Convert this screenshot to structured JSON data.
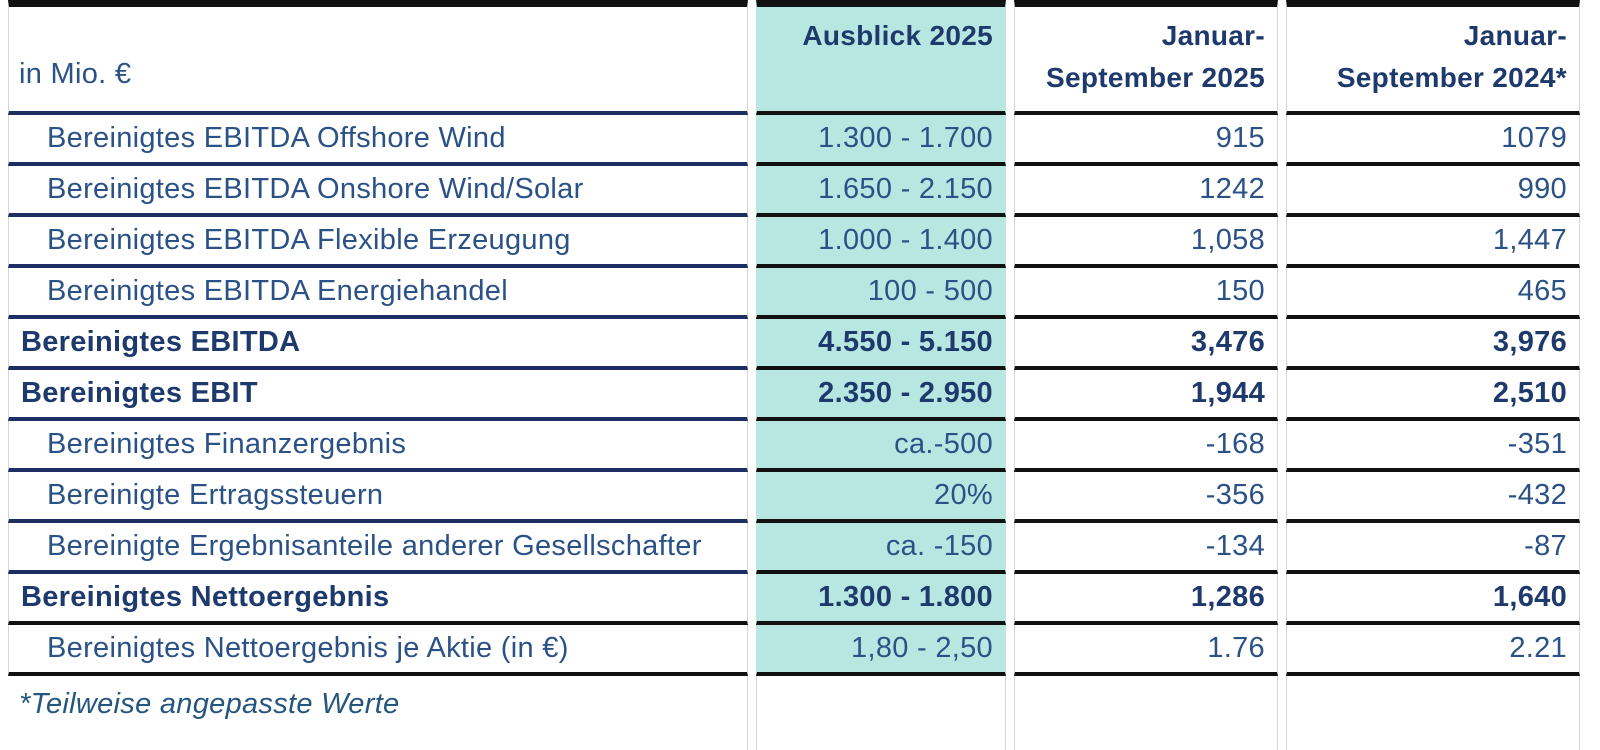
{
  "table": {
    "unit_label": "in Mio. €",
    "columns": {
      "outlook": {
        "label": "Ausblick 2025",
        "highlight_color": "#b8e7e1"
      },
      "jan_sep_2025": {
        "line1": "Januar-",
        "line2": "September 2025"
      },
      "jan_sep_2024": {
        "line1": "Januar-",
        "line2": "September 2024*"
      }
    },
    "rows": [
      {
        "label": "Bereinigtes EBITDA Offshore Wind",
        "outlook": "1.300 - 1.700",
        "jan_sep_2025": "915",
        "jan_sep_2024": "1079",
        "bold": false
      },
      {
        "label": "Bereinigtes EBITDA Onshore Wind/Solar",
        "outlook": "1.650 - 2.150",
        "jan_sep_2025": "1242",
        "jan_sep_2024": "990",
        "bold": false
      },
      {
        "label": "Bereinigtes EBITDA Flexible Erzeugung",
        "outlook": "1.000 - 1.400",
        "jan_sep_2025": "1,058",
        "jan_sep_2024": "1,447",
        "bold": false
      },
      {
        "label": "Bereinigtes EBITDA Energiehandel",
        "outlook": "100 - 500",
        "jan_sep_2025": "150",
        "jan_sep_2024": "465",
        "bold": false
      },
      {
        "label": "Bereinigtes EBITDA",
        "outlook": "4.550 - 5.150",
        "jan_sep_2025": "3,476",
        "jan_sep_2024": "3,976",
        "bold": true
      },
      {
        "label": "Bereinigtes EBIT",
        "outlook": "2.350 - 2.950",
        "jan_sep_2025": "1,944",
        "jan_sep_2024": "2,510",
        "bold": true
      },
      {
        "label": "Bereinigtes Finanzergebnis",
        "outlook": "ca.-500",
        "jan_sep_2025": "-168",
        "jan_sep_2024": "-351",
        "bold": false
      },
      {
        "label": "Bereinigte Ertragssteuern",
        "outlook": "20%",
        "jan_sep_2025": "-356",
        "jan_sep_2024": "-432",
        "bold": false
      },
      {
        "label": "Bereinigte Ergebnisanteile anderer Gesellschafter",
        "outlook": "ca. -150",
        "jan_sep_2025": "-134",
        "jan_sep_2024": "-87",
        "bold": false
      },
      {
        "label": "Bereinigtes Nettoergebnis",
        "outlook": "1.300 - 1.800",
        "jan_sep_2025": "1,286",
        "jan_sep_2024": "1,640",
        "bold": true
      },
      {
        "label": "Bereinigtes Nettoergebnis je Aktie (in €)",
        "outlook": "1,80 - 2,50",
        "jan_sep_2025": "1.76",
        "jan_sep_2024": "2.21",
        "bold": false
      }
    ],
    "footnote": "*Teilweise angepasste Werte"
  },
  "colors": {
    "highlight_teal": "#b8e7e1",
    "navy_text_bold": "#1e3a6d",
    "blue_text_regular": "#2b5287",
    "navy_divider": "#1c2e63",
    "black_divider": "#111111"
  }
}
